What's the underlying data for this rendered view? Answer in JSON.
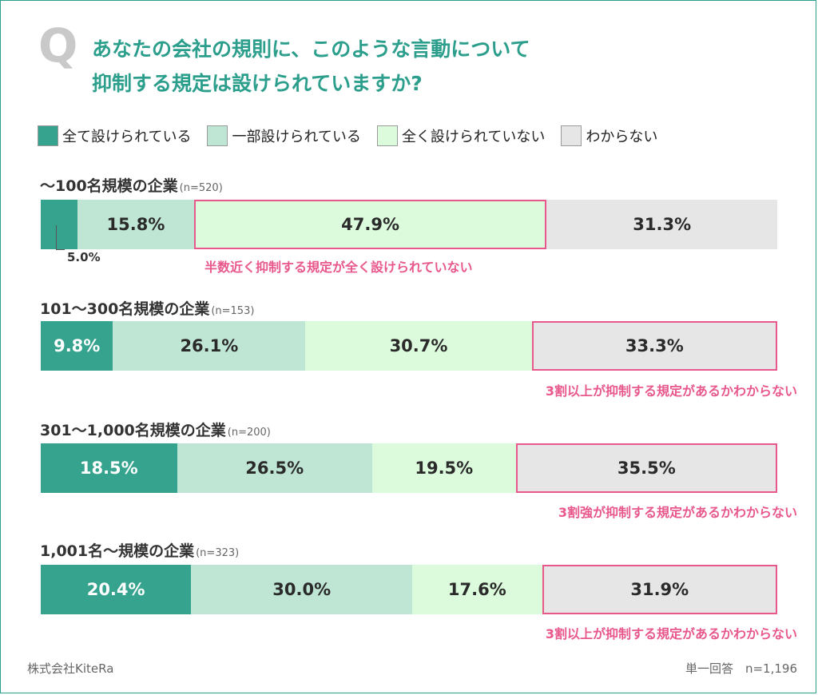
{
  "question": {
    "mark": "Q",
    "title_line1": "あなたの会社の規則に、このような言動について",
    "title_line2": "抑制する規定は設けられていますか?"
  },
  "chart_data": {
    "type": "bar",
    "orientation": "horizontal-stacked-100",
    "categories_legend": [
      "全て設けられている",
      "一部設けられている",
      "全く設けられていない",
      "わからない"
    ],
    "colors": [
      "#35a38e",
      "#bfe5d5",
      "#dcfbdc",
      "#e6e6e6"
    ],
    "highlight_color": "#e8588c",
    "groups": [
      {
        "label": "〜100名規模の企業",
        "n": "(n=520)",
        "values": [
          5.0,
          15.8,
          47.9,
          31.3
        ],
        "labels": [
          "",
          "15.8%",
          "47.9%",
          "31.3%"
        ],
        "small_label": "5.0%",
        "highlight_index": 2,
        "note": "半数近く抑制する規定が全く設けられていない"
      },
      {
        "label": "101〜300名規模の企業",
        "n": "(n=153)",
        "values": [
          9.8,
          26.1,
          30.7,
          33.3
        ],
        "labels": [
          "9.8%",
          "26.1%",
          "30.7%",
          "33.3%"
        ],
        "highlight_index": 3,
        "note": "3割以上が抑制する規定があるかわからない"
      },
      {
        "label": "301〜1,000名規模の企業",
        "n": "(n=200)",
        "values": [
          18.5,
          26.5,
          19.5,
          35.5
        ],
        "labels": [
          "18.5%",
          "26.5%",
          "19.5%",
          "35.5%"
        ],
        "highlight_index": 3,
        "note": "3割強が抑制する規定があるかわからない"
      },
      {
        "label": "1,001名〜規模の企業",
        "n": "(n=323)",
        "values": [
          20.4,
          30.0,
          17.6,
          31.9
        ],
        "labels": [
          "20.4%",
          "30.0%",
          "17.6%",
          "31.9%"
        ],
        "highlight_index": 3,
        "note": "3割以上が抑制する規定があるかわからない"
      }
    ]
  },
  "footer": {
    "source": "株式会社KiteRa",
    "sample": "単一回答　n=1,196"
  }
}
